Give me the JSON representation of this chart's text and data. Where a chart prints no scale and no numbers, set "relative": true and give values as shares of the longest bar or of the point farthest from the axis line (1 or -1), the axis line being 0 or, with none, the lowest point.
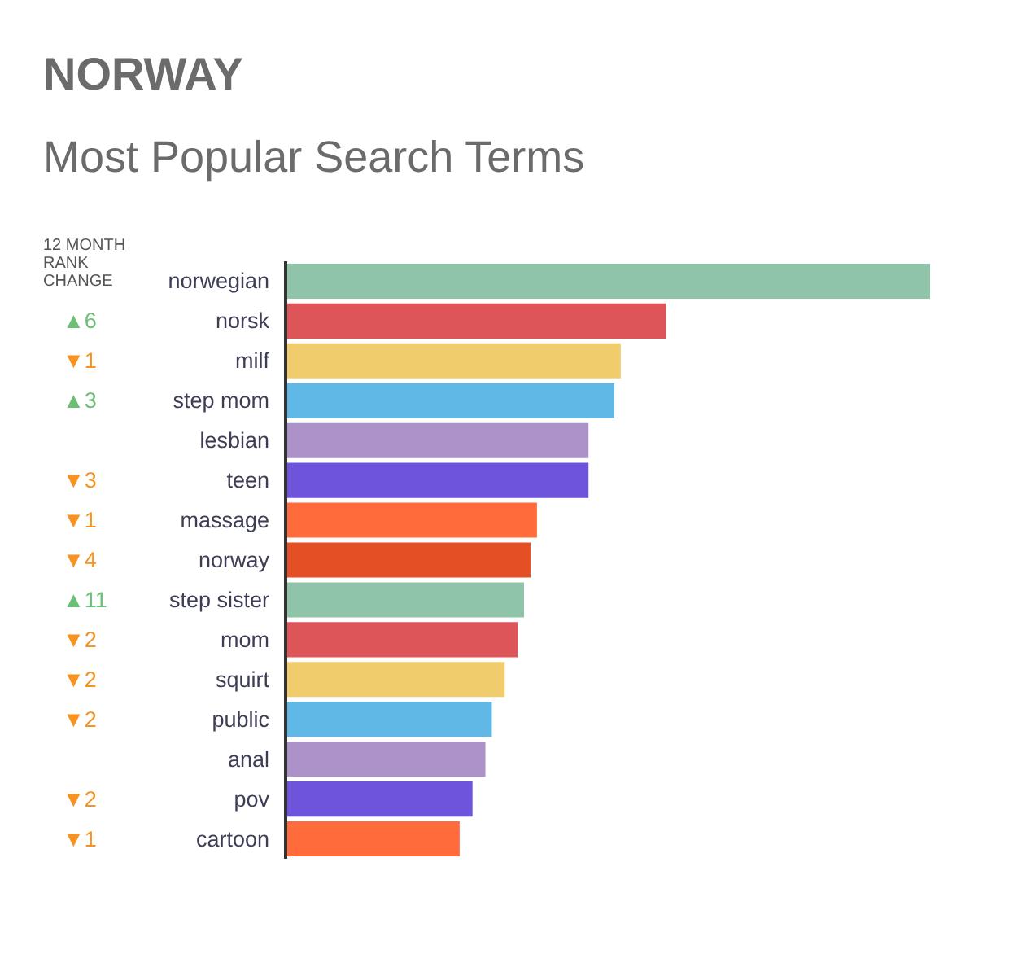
{
  "chart_data": {
    "type": "bar",
    "orientation": "horizontal",
    "relative": true,
    "title": "NORWAY",
    "subtitle": "Most Popular Search Terms",
    "categories": [
      "norwegian",
      "norsk",
      "milf",
      "step mom",
      "lesbian",
      "teen",
      "massage",
      "norway",
      "step sister",
      "mom",
      "squirt",
      "public",
      "anal",
      "pov",
      "cartoon"
    ],
    "values": [
      1,
      0.59,
      0.52,
      0.51,
      0.47,
      0.47,
      0.39,
      0.38,
      0.37,
      0.36,
      0.34,
      0.32,
      0.31,
      0.29,
      0.27
    ],
    "colors": [
      "#8fc4a8",
      "#dd5558",
      "#f0cc6c",
      "#5fb8e6",
      "#ac92c8",
      "#6e54dc",
      "#ff6b3a",
      "#e44f25",
      "#8fc4a8",
      "#dd5558",
      "#f0cc6c",
      "#5fb8e6",
      "#ac92c8",
      "#6e54dc",
      "#ff6b3a"
    ],
    "annotations": [
      "12 MONTH RANK CHANGE",
      "▲6",
      "▼1",
      "▲3",
      "▼3",
      "▼1",
      "▼4",
      "▲11",
      "▼2",
      "▼2",
      "▼2",
      "▼2",
      "▼1"
    ]
  }
}
